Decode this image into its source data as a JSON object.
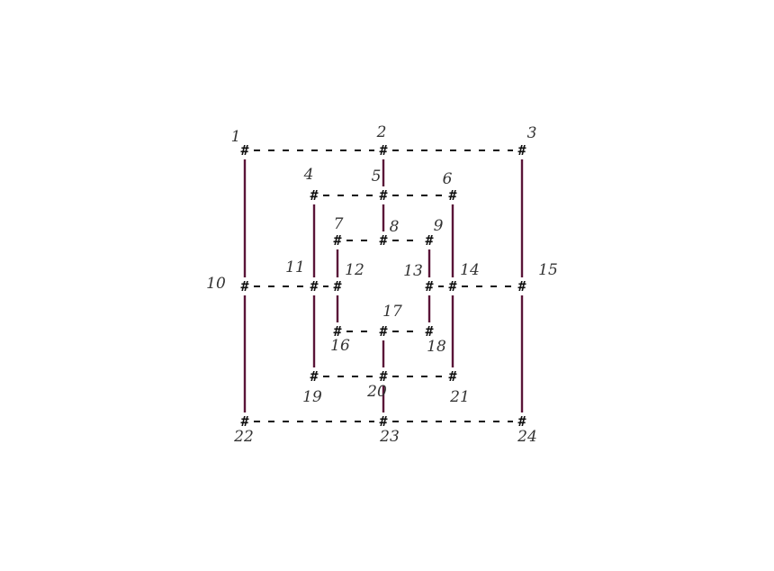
{
  "board": {
    "node_symbol": "#",
    "colors": {
      "dash": "#111111",
      "vertical": "#5a1438",
      "mark": "#111111",
      "label": "#333333"
    },
    "points": [
      {
        "id": "1",
        "label": "1"
      },
      {
        "id": "2",
        "label": "2"
      },
      {
        "id": "3",
        "label": "3"
      },
      {
        "id": "4",
        "label": "4"
      },
      {
        "id": "5",
        "label": "5"
      },
      {
        "id": "6",
        "label": "6"
      },
      {
        "id": "7",
        "label": "7"
      },
      {
        "id": "8",
        "label": "8"
      },
      {
        "id": "9",
        "label": "9"
      },
      {
        "id": "10",
        "label": "10"
      },
      {
        "id": "11",
        "label": "11"
      },
      {
        "id": "12",
        "label": "12"
      },
      {
        "id": "13",
        "label": "13"
      },
      {
        "id": "14",
        "label": "14"
      },
      {
        "id": "15",
        "label": "15"
      },
      {
        "id": "16",
        "label": "16"
      },
      {
        "id": "17",
        "label": "17"
      },
      {
        "id": "18",
        "label": "18"
      },
      {
        "id": "19",
        "label": "19"
      },
      {
        "id": "20",
        "label": "20"
      },
      {
        "id": "21",
        "label": "21"
      },
      {
        "id": "22",
        "label": "22"
      },
      {
        "id": "23",
        "label": "23"
      },
      {
        "id": "24",
        "label": "24"
      }
    ],
    "connections": [
      [
        "1",
        "2"
      ],
      [
        "2",
        "3"
      ],
      [
        "4",
        "5"
      ],
      [
        "5",
        "6"
      ],
      [
        "7",
        "8"
      ],
      [
        "8",
        "9"
      ],
      [
        "10",
        "11"
      ],
      [
        "11",
        "12"
      ],
      [
        "13",
        "14"
      ],
      [
        "14",
        "15"
      ],
      [
        "16",
        "17"
      ],
      [
        "17",
        "18"
      ],
      [
        "19",
        "20"
      ],
      [
        "20",
        "21"
      ],
      [
        "22",
        "23"
      ],
      [
        "23",
        "24"
      ],
      [
        "1",
        "10"
      ],
      [
        "10",
        "22"
      ],
      [
        "4",
        "11"
      ],
      [
        "11",
        "19"
      ],
      [
        "7",
        "12"
      ],
      [
        "12",
        "16"
      ],
      [
        "2",
        "5"
      ],
      [
        "5",
        "8"
      ],
      [
        "17",
        "20"
      ],
      [
        "20",
        "23"
      ],
      [
        "9",
        "13"
      ],
      [
        "13",
        "18"
      ],
      [
        "6",
        "14"
      ],
      [
        "14",
        "21"
      ],
      [
        "3",
        "15"
      ],
      [
        "15",
        "24"
      ]
    ]
  }
}
